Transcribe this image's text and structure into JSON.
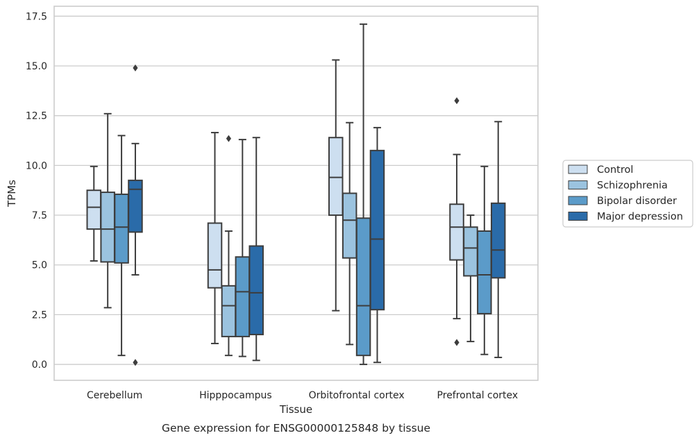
{
  "chart_data": {
    "type": "box",
    "title": "Gene expression for ENSG00000125848 by tissue",
    "xlabel": "Tissue",
    "ylabel": "TPMs",
    "ylim": [
      -0.8,
      18.0
    ],
    "yticks": [
      0.0,
      2.5,
      5.0,
      7.5,
      10.0,
      12.5,
      15.0,
      17.5
    ],
    "ytick_labels": [
      "0.0",
      "2.5",
      "5.0",
      "7.5",
      "10.0",
      "12.5",
      "15.0",
      "17.5"
    ],
    "grid": "horizontal",
    "legend_position": "right",
    "categories": [
      "Cerebellum",
      "Hipppocampus",
      "Orbitofrontal cortex",
      "Prefrontal cortex"
    ],
    "series": [
      {
        "name": "Control",
        "color": "#cddff0",
        "boxes": [
          {
            "whisker_low": 5.2,
            "q1": 6.8,
            "median": 7.9,
            "q3": 8.75,
            "whisker_high": 9.95,
            "outliers": []
          },
          {
            "whisker_low": 1.05,
            "q1": 3.85,
            "median": 4.75,
            "q3": 7.1,
            "whisker_high": 11.65,
            "outliers": []
          },
          {
            "whisker_low": 2.7,
            "q1": 7.5,
            "median": 9.4,
            "q3": 11.4,
            "whisker_high": 15.3,
            "outliers": []
          },
          {
            "whisker_low": 2.3,
            "q1": 5.25,
            "median": 6.9,
            "q3": 8.05,
            "whisker_high": 10.55,
            "outliers": [
              1.1,
              13.25
            ]
          }
        ]
      },
      {
        "name": "Schizophrenia",
        "color": "#9bc3df",
        "boxes": [
          {
            "whisker_low": 2.85,
            "q1": 5.15,
            "median": 6.8,
            "q3": 8.65,
            "whisker_high": 12.6,
            "outliers": []
          },
          {
            "whisker_low": 0.45,
            "q1": 1.4,
            "median": 2.95,
            "q3": 3.95,
            "whisker_high": 6.7,
            "outliers": [
              11.35
            ]
          },
          {
            "whisker_low": 1.0,
            "q1": 5.35,
            "median": 7.25,
            "q3": 8.6,
            "whisker_high": 12.15,
            "outliers": []
          },
          {
            "whisker_low": 1.15,
            "q1": 4.45,
            "median": 5.85,
            "q3": 6.9,
            "whisker_high": 7.5,
            "outliers": []
          }
        ]
      },
      {
        "name": "Bipolar disorder",
        "color": "#5b9bc9",
        "boxes": [
          {
            "whisker_low": 0.45,
            "q1": 5.1,
            "median": 6.9,
            "q3": 8.55,
            "whisker_high": 11.5,
            "outliers": []
          },
          {
            "whisker_low": 0.4,
            "q1": 1.4,
            "median": 3.65,
            "q3": 5.4,
            "whisker_high": 11.3,
            "outliers": []
          },
          {
            "whisker_low": 0.0,
            "q1": 0.45,
            "median": 2.95,
            "q3": 7.35,
            "whisker_high": 17.1,
            "outliers": []
          },
          {
            "whisker_low": 0.5,
            "q1": 2.55,
            "median": 4.5,
            "q3": 6.7,
            "whisker_high": 9.95,
            "outliers": []
          }
        ]
      },
      {
        "name": "Major depression",
        "color": "#2a6ba9",
        "boxes": [
          {
            "whisker_low": 4.5,
            "q1": 6.65,
            "median": 8.8,
            "q3": 9.25,
            "whisker_high": 11.1,
            "outliers": [
              0.1,
              14.9
            ]
          },
          {
            "whisker_low": 0.2,
            "q1": 1.5,
            "median": 3.6,
            "q3": 5.95,
            "whisker_high": 11.4,
            "outliers": []
          },
          {
            "whisker_low": 0.1,
            "q1": 2.75,
            "median": 6.3,
            "q3": 10.75,
            "whisker_high": 11.9,
            "outliers": []
          },
          {
            "whisker_low": 0.35,
            "q1": 4.35,
            "median": 5.75,
            "q3": 8.1,
            "whisker_high": 12.2,
            "outliers": []
          }
        ]
      }
    ]
  },
  "colors": {
    "background": "#ffffff",
    "grid": "#cccccc",
    "spine": "#cccccc",
    "line": "#3d3d3d",
    "text": "#262626"
  }
}
